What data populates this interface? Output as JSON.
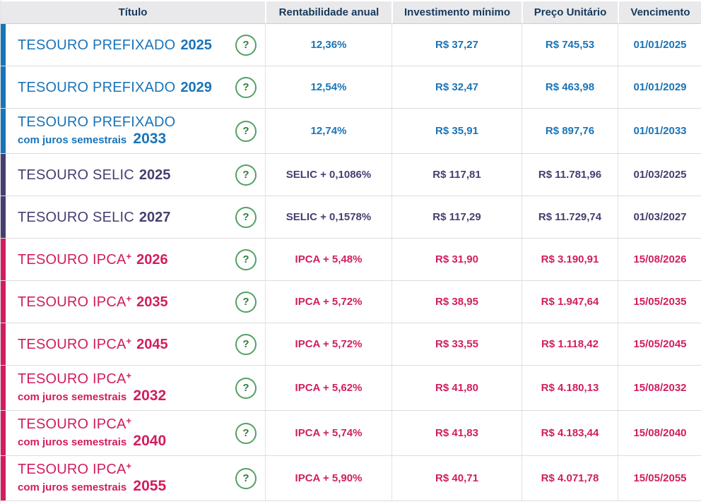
{
  "table": {
    "headers": {
      "titulo": "Título",
      "rentabilidade": "Rentabilidade anual",
      "investimento": "Investimento mínimo",
      "preco": "Preço Unitário",
      "vencimento": "Vencimento"
    },
    "rows": [
      {
        "family": "prefixado",
        "name": "TESOURO PREFIXADO",
        "sup": "",
        "subtitle": "",
        "year": "2025",
        "rate": "12,36%",
        "min_investment": "R$ 37,27",
        "unit_price": "R$ 745,53",
        "maturity": "01/01/2025"
      },
      {
        "family": "prefixado",
        "name": "TESOURO PREFIXADO",
        "sup": "",
        "subtitle": "",
        "year": "2029",
        "rate": "12,54%",
        "min_investment": "R$ 32,47",
        "unit_price": "R$ 463,98",
        "maturity": "01/01/2029"
      },
      {
        "family": "prefixado",
        "name": "TESOURO PREFIXADO",
        "sup": "",
        "subtitle": "com juros semestrais",
        "year": "2033",
        "rate": "12,74%",
        "min_investment": "R$ 35,91",
        "unit_price": "R$ 897,76",
        "maturity": "01/01/2033"
      },
      {
        "family": "selic",
        "name": "TESOURO SELIC",
        "sup": "",
        "subtitle": "",
        "year": "2025",
        "rate": "SELIC + 0,1086%",
        "min_investment": "R$ 117,81",
        "unit_price": "R$ 11.781,96",
        "maturity": "01/03/2025"
      },
      {
        "family": "selic",
        "name": "TESOURO SELIC",
        "sup": "",
        "subtitle": "",
        "year": "2027",
        "rate": "SELIC + 0,1578%",
        "min_investment": "R$ 117,29",
        "unit_price": "R$ 11.729,74",
        "maturity": "01/03/2027"
      },
      {
        "family": "ipca",
        "name": "TESOURO IPCA",
        "sup": "+",
        "subtitle": "",
        "year": "2026",
        "rate": "IPCA + 5,48%",
        "min_investment": "R$ 31,90",
        "unit_price": "R$ 3.190,91",
        "maturity": "15/08/2026"
      },
      {
        "family": "ipca",
        "name": "TESOURO IPCA",
        "sup": "+",
        "subtitle": "",
        "year": "2035",
        "rate": "IPCA + 5,72%",
        "min_investment": "R$ 38,95",
        "unit_price": "R$ 1.947,64",
        "maturity": "15/05/2035"
      },
      {
        "family": "ipca",
        "name": "TESOURO IPCA",
        "sup": "+",
        "subtitle": "",
        "year": "2045",
        "rate": "IPCA + 5,72%",
        "min_investment": "R$ 33,55",
        "unit_price": "R$ 1.118,42",
        "maturity": "15/05/2045"
      },
      {
        "family": "ipca",
        "name": "TESOURO IPCA",
        "sup": "+",
        "subtitle": "com juros semestrais",
        "year": "2032",
        "rate": "IPCA + 5,62%",
        "min_investment": "R$ 41,80",
        "unit_price": "R$ 4.180,13",
        "maturity": "15/08/2032"
      },
      {
        "family": "ipca",
        "name": "TESOURO IPCA",
        "sup": "+",
        "subtitle": "com juros semestrais",
        "year": "2040",
        "rate": "IPCA + 5,74%",
        "min_investment": "R$ 41,83",
        "unit_price": "R$ 4.183,44",
        "maturity": "15/08/2040"
      },
      {
        "family": "ipca",
        "name": "TESOURO IPCA",
        "sup": "+",
        "subtitle": "com juros semestrais",
        "year": "2055",
        "rate": "IPCA + 5,90%",
        "min_investment": "R$ 40,71",
        "unit_price": "R$ 4.071,78",
        "maturity": "15/05/2055"
      }
    ]
  },
  "icons": {
    "help": "?"
  },
  "colors": {
    "prefixado": "#1a74b8",
    "selic": "#453f70",
    "ipca": "#d11d5f",
    "header_text": "#17395c",
    "help_green": "#2e7d3b",
    "header_bg": "#e9e9eb"
  }
}
